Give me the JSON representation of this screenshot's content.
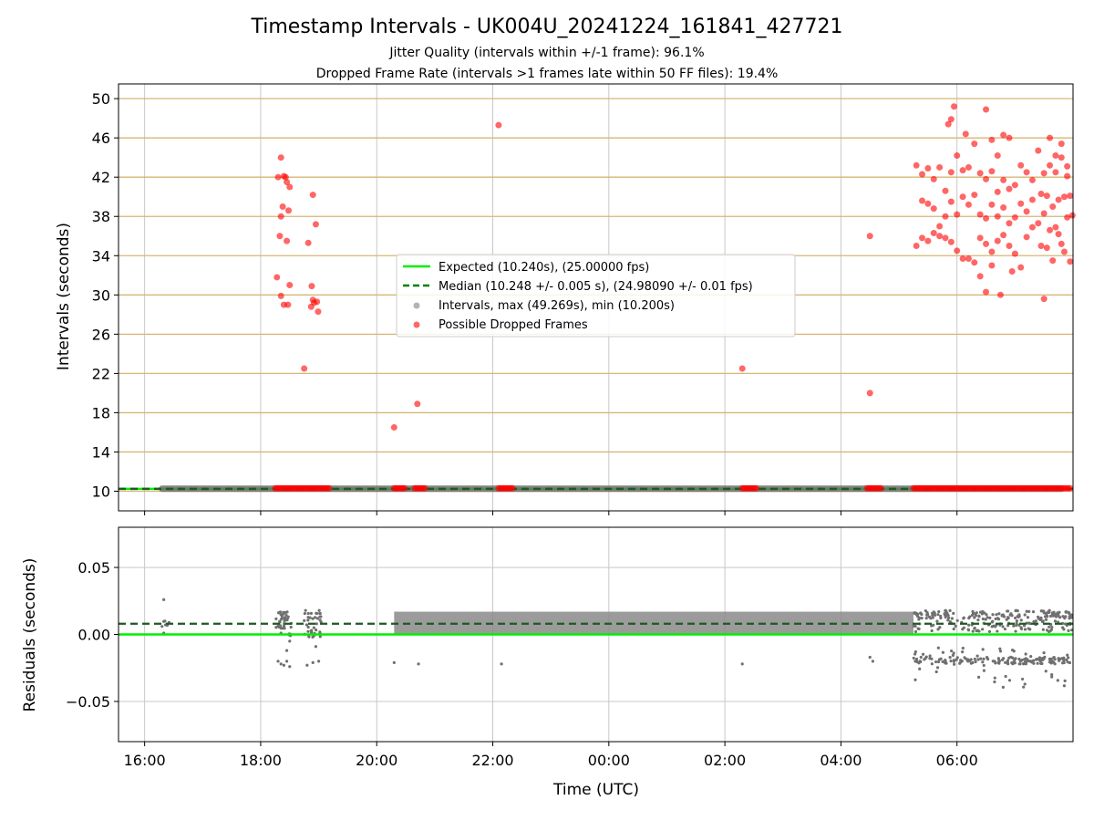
{
  "chart_data": [
    {
      "type": "scatter",
      "title": "Timestamp Intervals - UK004U_20241224_161841_427721",
      "subtitle_lines": [
        "Jitter Quality (intervals within +/-1 frame): 96.1%",
        "Dropped Frame Rate (intervals >1 frames late within 50 FF files): 19.4%"
      ],
      "xlabel": "",
      "ylabel": "Intervals (seconds)",
      "x_unit": "hours after 16:00 UTC",
      "xlim": [
        -0.45,
        16.0
      ],
      "ylim": [
        8.0,
        51.5
      ],
      "yticks": [
        10,
        14,
        18,
        22,
        26,
        30,
        34,
        38,
        42,
        46,
        50
      ],
      "xticks": [
        0,
        2,
        4,
        6,
        8,
        10,
        12,
        14
      ],
      "xtick_labels": [
        "16:00",
        "18:00",
        "20:00",
        "22:00",
        "00:00",
        "02:00",
        "04:00",
        "06:00"
      ],
      "grid": true,
      "legend_position": "center",
      "legend": [
        "Expected (10.240s), (25.00000 fps)",
        "Median (10.248 +/- 0.005 s), (24.98090 +/- 0.01 fps)",
        "Intervals, max (49.269s), min (10.200s)",
        "Possible Dropped Frames"
      ],
      "series": [
        {
          "name": "Expected (10.240s), (25.00000 fps)",
          "kind": "hline",
          "y": 10.24,
          "color": "#00ee00"
        },
        {
          "name": "Median (10.248 +/- 0.005 s), (24.98090 +/- 0.01 fps)",
          "kind": "hline-dashed",
          "y": 10.248,
          "color": "#008000"
        },
        {
          "name": "Intervals, max (49.269s), min (10.200s)",
          "kind": "band",
          "x_range": [
            0.3,
            15.8
          ],
          "y": 10.25,
          "color": "#808080"
        },
        {
          "name": "Possible Dropped Frames",
          "kind": "scatter",
          "color": "#ff0000",
          "points": [
            [
              2.3,
              42.0
            ],
            [
              2.35,
              44.0
            ],
            [
              2.4,
              42.1
            ],
            [
              2.45,
              41.5
            ],
            [
              2.5,
              41.0
            ],
            [
              2.38,
              39.0
            ],
            [
              2.35,
              38.0
            ],
            [
              2.48,
              38.6
            ],
            [
              2.33,
              36.0
            ],
            [
              2.45,
              35.5
            ],
            [
              2.28,
              31.8
            ],
            [
              2.5,
              31.0
            ],
            [
              2.35,
              29.9
            ],
            [
              2.4,
              29.0
            ],
            [
              2.47,
              29.0
            ],
            [
              2.43,
              42.0
            ],
            [
              2.82,
              35.3
            ],
            [
              2.9,
              40.2
            ],
            [
              2.95,
              37.2
            ],
            [
              2.88,
              30.9
            ],
            [
              2.9,
              29.5
            ],
            [
              2.92,
              29.2
            ],
            [
              2.97,
              29.3
            ],
            [
              2.99,
              28.3
            ],
            [
              2.87,
              28.8
            ],
            [
              2.75,
              22.5
            ],
            [
              4.3,
              16.5
            ],
            [
              4.7,
              18.9
            ],
            [
              6.1,
              47.3
            ],
            [
              10.3,
              22.5
            ],
            [
              12.5,
              36.0
            ],
            [
              12.5,
              20.0
            ],
            [
              13.3,
              43.2
            ],
            [
              13.4,
              42.3
            ],
            [
              13.5,
              42.9
            ],
            [
              13.6,
              41.8
            ],
            [
              13.7,
              43.0
            ],
            [
              13.8,
              40.6
            ],
            [
              13.9,
              42.5
            ],
            [
              14.0,
              44.2
            ],
            [
              14.1,
              42.7
            ],
            [
              14.2,
              43.0
            ],
            [
              13.4,
              39.6
            ],
            [
              13.5,
              39.3
            ],
            [
              13.6,
              38.8
            ],
            [
              13.7,
              37.0
            ],
            [
              13.8,
              38.0
            ],
            [
              13.9,
              39.5
            ],
            [
              14.0,
              38.2
            ],
            [
              14.1,
              40.0
            ],
            [
              14.2,
              39.2
            ],
            [
              14.3,
              40.2
            ],
            [
              13.3,
              35.0
            ],
            [
              13.4,
              35.8
            ],
            [
              13.5,
              35.5
            ],
            [
              13.6,
              36.3
            ],
            [
              13.7,
              36.0
            ],
            [
              13.8,
              35.8
            ],
            [
              13.9,
              35.4
            ],
            [
              14.0,
              34.5
            ],
            [
              14.1,
              33.7
            ],
            [
              14.2,
              33.7
            ],
            [
              13.85,
              47.4
            ],
            [
              13.9,
              47.9
            ],
            [
              13.95,
              49.2
            ],
            [
              14.15,
              46.4
            ],
            [
              14.3,
              45.4
            ],
            [
              14.5,
              48.9
            ],
            [
              14.6,
              45.8
            ],
            [
              14.7,
              44.2
            ],
            [
              14.8,
              46.3
            ],
            [
              14.9,
              46.0
            ],
            [
              14.4,
              42.4
            ],
            [
              14.5,
              41.8
            ],
            [
              14.6,
              42.6
            ],
            [
              14.7,
              40.5
            ],
            [
              14.8,
              41.7
            ],
            [
              14.9,
              40.8
            ],
            [
              15.0,
              41.2
            ],
            [
              15.1,
              43.2
            ],
            [
              15.2,
              42.5
            ],
            [
              15.3,
              41.7
            ],
            [
              14.4,
              38.2
            ],
            [
              14.5,
              37.8
            ],
            [
              14.6,
              39.2
            ],
            [
              14.7,
              38.0
            ],
            [
              14.8,
              38.9
            ],
            [
              14.9,
              37.3
            ],
            [
              15.0,
              37.9
            ],
            [
              15.1,
              39.3
            ],
            [
              15.2,
              38.5
            ],
            [
              15.3,
              39.7
            ],
            [
              14.4,
              35.8
            ],
            [
              14.5,
              35.2
            ],
            [
              14.6,
              34.4
            ],
            [
              14.7,
              35.5
            ],
            [
              14.8,
              36.1
            ],
            [
              14.9,
              35.0
            ],
            [
              15.0,
              34.2
            ],
            [
              15.1,
              32.8
            ],
            [
              15.2,
              35.9
            ],
            [
              15.3,
              36.9
            ],
            [
              14.3,
              33.3
            ],
            [
              14.4,
              31.9
            ],
            [
              14.5,
              30.3
            ],
            [
              14.6,
              33.0
            ],
            [
              14.75,
              30.0
            ],
            [
              14.95,
              32.4
            ],
            [
              15.4,
              44.7
            ],
            [
              15.5,
              42.4
            ],
            [
              15.6,
              43.2
            ],
            [
              15.7,
              42.5
            ],
            [
              15.8,
              44.0
            ],
            [
              15.9,
              42.1
            ],
            [
              15.45,
              40.3
            ],
            [
              15.55,
              40.1
            ],
            [
              15.65,
              39.0
            ],
            [
              15.75,
              39.7
            ],
            [
              15.85,
              40.0
            ],
            [
              15.95,
              40.1
            ],
            [
              15.4,
              37.3
            ],
            [
              15.5,
              38.3
            ],
            [
              15.6,
              36.6
            ],
            [
              15.7,
              36.9
            ],
            [
              15.8,
              35.2
            ],
            [
              15.9,
              37.9
            ],
            [
              15.45,
              35.0
            ],
            [
              15.55,
              34.8
            ],
            [
              15.65,
              33.5
            ],
            [
              15.75,
              36.2
            ],
            [
              15.85,
              34.4
            ],
            [
              15.95,
              33.4
            ],
            [
              15.5,
              29.6
            ],
            [
              15.6,
              46.0
            ],
            [
              15.7,
              44.2
            ],
            [
              15.8,
              45.4
            ],
            [
              15.9,
              43.1
            ],
            [
              15.99,
              38.1
            ]
          ],
          "near_baseline_x_ranges": [
            [
              2.25,
              3.2
            ],
            [
              4.3,
              4.5
            ],
            [
              4.65,
              4.85
            ],
            [
              6.1,
              6.35
            ],
            [
              10.3,
              10.55
            ],
            [
              12.45,
              12.7
            ],
            [
              13.25,
              15.95
            ]
          ]
        }
      ]
    },
    {
      "type": "scatter",
      "xlabel": "Time (UTC)",
      "ylabel": "Residuals (seconds)",
      "ylim": [
        -0.08,
        0.08
      ],
      "yticks": [
        -0.05,
        0.0,
        0.05
      ],
      "ytick_labels": [
        "−0.05",
        "0.00",
        "0.05"
      ],
      "xticks": [
        0,
        2,
        4,
        6,
        8,
        10,
        12,
        14
      ],
      "xtick_labels": [
        "16:00",
        "18:00",
        "20:00",
        "22:00",
        "00:00",
        "02:00",
        "04:00",
        "06:00"
      ],
      "grid": true,
      "series": [
        {
          "name": "Expected",
          "kind": "hline",
          "y": 0.0,
          "color": "#00ee00"
        },
        {
          "name": "Median",
          "kind": "hline-dashed",
          "y": 0.008,
          "color": "#008000"
        },
        {
          "name": "Residuals",
          "kind": "scatter",
          "color": "#808080",
          "points": [
            [
              0.33,
              0.026
            ],
            [
              0.35,
              0.01
            ],
            [
              0.33,
              0.001
            ],
            [
              2.3,
              -0.02
            ],
            [
              2.35,
              -0.022
            ],
            [
              2.4,
              -0.023
            ],
            [
              2.45,
              -0.02
            ],
            [
              2.5,
              -0.024
            ],
            [
              2.45,
              -0.012
            ],
            [
              2.5,
              -0.005
            ],
            [
              2.8,
              -0.023
            ],
            [
              2.9,
              -0.021
            ],
            [
              2.95,
              -0.009
            ],
            [
              3.0,
              -0.02
            ],
            [
              4.3,
              -0.021
            ],
            [
              4.72,
              -0.022
            ],
            [
              6.15,
              -0.022
            ],
            [
              10.3,
              -0.022
            ],
            [
              12.5,
              -0.017
            ],
            [
              12.55,
              -0.02
            ]
          ],
          "dense_band": {
            "x_range": [
              4.3,
              13.25
            ],
            "y_range": [
              0.0,
              0.017
            ]
          },
          "scatter_region": {
            "x_range": [
              13.25,
              15.99
            ],
            "y_range": [
              -0.04,
              0.018
            ]
          }
        }
      ]
    }
  ]
}
